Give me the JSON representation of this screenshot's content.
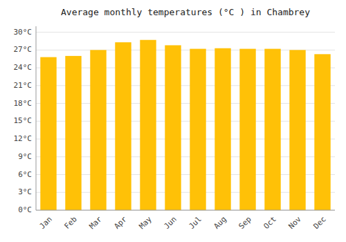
{
  "chart_data": {
    "type": "bar",
    "title": "Average monthly temperatures (°C ) in Chambrey",
    "categories": [
      "Jan",
      "Feb",
      "Mar",
      "Apr",
      "May",
      "Jun",
      "Jul",
      "Aug",
      "Sep",
      "Oct",
      "Nov",
      "Dec"
    ],
    "values": [
      25.8,
      26.0,
      27.0,
      28.3,
      28.7,
      27.8,
      27.2,
      27.3,
      27.2,
      27.2,
      27.0,
      26.3
    ],
    "color": "#FFC107",
    "ylim": [
      0,
      31
    ],
    "yticks": [
      {
        "value": 0,
        "label": "0°C"
      },
      {
        "value": 3,
        "label": "3°C"
      },
      {
        "value": 6,
        "label": "6°C"
      },
      {
        "value": 9,
        "label": "9°C"
      },
      {
        "value": 12,
        "label": "12°C"
      },
      {
        "value": 15,
        "label": "15°C"
      },
      {
        "value": 18,
        "label": "18°C"
      },
      {
        "value": 21,
        "label": "21°C"
      },
      {
        "value": 24,
        "label": "24°C"
      },
      {
        "value": 27,
        "label": "27°C"
      },
      {
        "value": 30,
        "label": "30°C"
      }
    ],
    "grid": true
  }
}
